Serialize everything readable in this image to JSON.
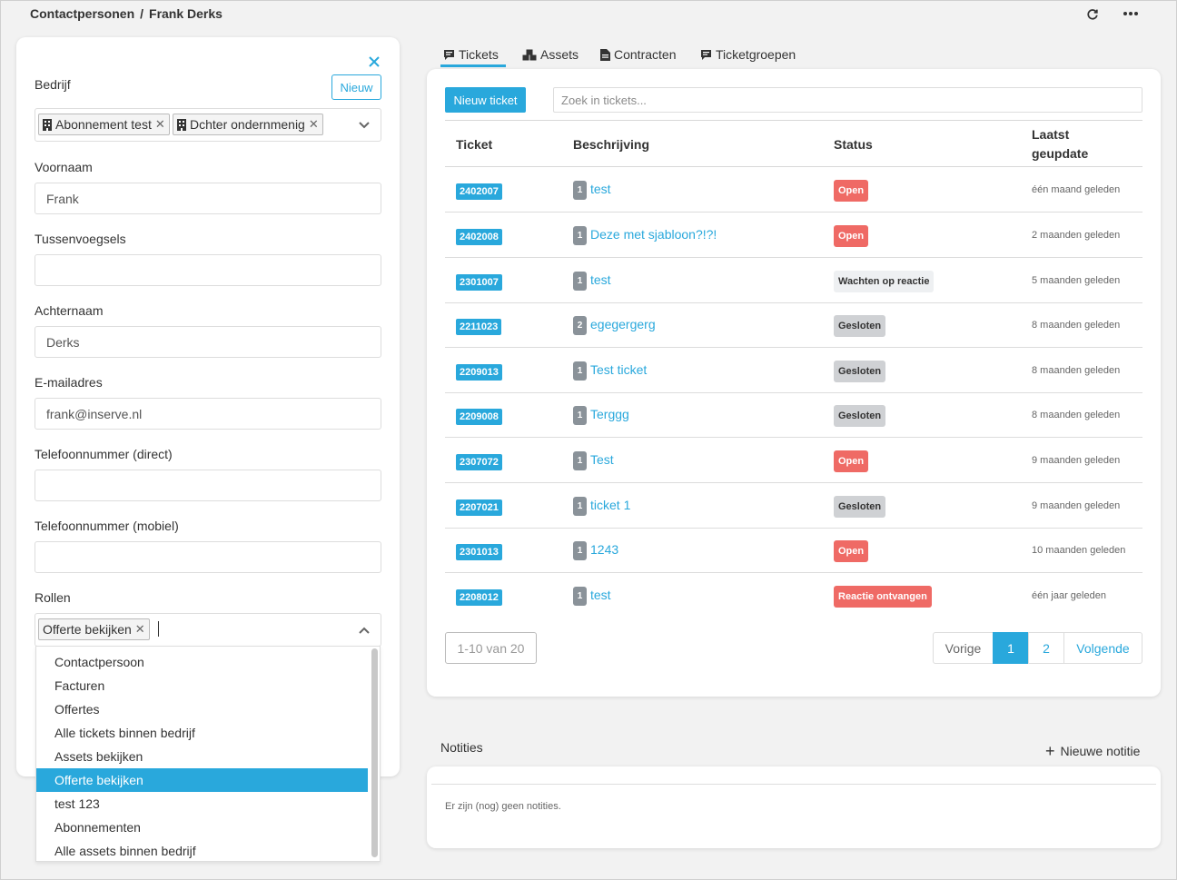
{
  "breadcrumb": {
    "parent": "Contactpersonen",
    "separator": "/",
    "current": "Frank Derks"
  },
  "form": {
    "bedrijf_label": "Bedrijf",
    "nieuw_label": "Nieuw",
    "companies": [
      "Abonnement test",
      "Dchter ondernmenig"
    ],
    "voornaam_label": "Voornaam",
    "voornaam_value": "Frank",
    "tussenvoegsels_label": "Tussenvoegsels",
    "tussenvoegsels_value": "",
    "achternaam_label": "Achternaam",
    "achternaam_value": "Derks",
    "email_label": "E-mailadres",
    "email_value": "frank@inserve.nl",
    "tel_direct_label": "Telefoonnummer (direct)",
    "tel_direct_value": "",
    "tel_mobiel_label": "Telefoonnummer (mobiel)",
    "tel_mobiel_value": "",
    "rollen_label": "Rollen",
    "rollen_selected": [
      "Offerte bekijken"
    ]
  },
  "roles_dropdown": {
    "options": [
      "Contactpersoon",
      "Facturen",
      "Offertes",
      "Alle tickets binnen bedrijf",
      "Assets bekijken",
      "Offerte bekijken",
      "test 123",
      "Abonnementen",
      "Alle assets binnen bedrijf"
    ],
    "highlighted_index": 5
  },
  "tabs": [
    {
      "label": "Tickets",
      "icon": "comment-icon",
      "active": true
    },
    {
      "label": "Assets",
      "icon": "cubes-icon",
      "active": false
    },
    {
      "label": "Contracten",
      "icon": "document-icon",
      "active": false
    },
    {
      "label": "Ticketgroepen",
      "icon": "comment-icon",
      "active": false
    }
  ],
  "tickets": {
    "new_button": "Nieuw ticket",
    "search_placeholder": "Zoek in tickets...",
    "columns": {
      "ticket": "Ticket",
      "description": "Beschrijving",
      "status": "Status",
      "updated_line1": "Laatst",
      "updated_line2": "geupdate"
    },
    "rows": [
      {
        "id": "2402007",
        "count": "1",
        "description": "test",
        "status": "Open",
        "status_type": "open",
        "updated": "één maand geleden"
      },
      {
        "id": "2402008",
        "count": "1",
        "description": "Deze met sjabloon?!?!",
        "status": "Open",
        "status_type": "open",
        "updated": "2 maanden geleden"
      },
      {
        "id": "2301007",
        "count": "1",
        "description": "test",
        "status": "Wachten op reactie",
        "status_type": "waiting",
        "updated": "5 maanden geleden"
      },
      {
        "id": "2211023",
        "count": "2",
        "description": "egegergerg",
        "status": "Gesloten",
        "status_type": "closed",
        "updated": "8 maanden geleden"
      },
      {
        "id": "2209013",
        "count": "1",
        "description": "Test ticket",
        "status": "Gesloten",
        "status_type": "closed",
        "updated": "8 maanden geleden"
      },
      {
        "id": "2209008",
        "count": "1",
        "description": "Terggg",
        "status": "Gesloten",
        "status_type": "closed",
        "updated": "8 maanden geleden"
      },
      {
        "id": "2307072",
        "count": "1",
        "description": "Test",
        "status": "Open",
        "status_type": "open",
        "updated": "9 maanden geleden"
      },
      {
        "id": "2207021",
        "count": "1",
        "description": "ticket 1",
        "status": "Gesloten",
        "status_type": "closed",
        "updated": "9 maanden geleden"
      },
      {
        "id": "2301013",
        "count": "1",
        "description": "1243",
        "status": "Open",
        "status_type": "open",
        "updated": "10 maanden geleden"
      },
      {
        "id": "2208012",
        "count": "1",
        "description": "test",
        "status": "Reactie ontvangen",
        "status_type": "received",
        "updated": "één jaar geleden"
      }
    ],
    "range": "1-10 van 20",
    "pager": {
      "prev": "Vorige",
      "pages": [
        "1",
        "2"
      ],
      "current": "1",
      "next": "Volgende"
    }
  },
  "notes": {
    "title": "Notities",
    "new_note": "Nieuwe notitie",
    "empty": "Er zijn (nog) geen notities."
  },
  "colors": {
    "accent": "#29a8dc",
    "open": "#ef6a65",
    "closed": "#cfd1d4"
  }
}
